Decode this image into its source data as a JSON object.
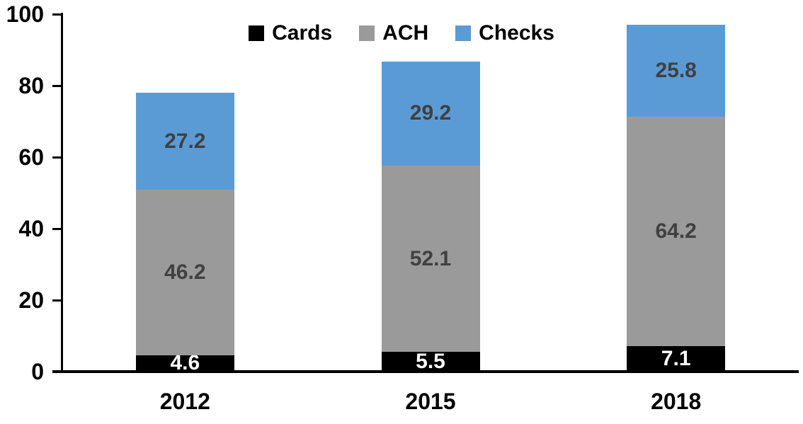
{
  "chart_data": {
    "type": "bar",
    "stacked": true,
    "title": "",
    "xlabel": "",
    "ylabel": "",
    "categories": [
      "2012",
      "2015",
      "2018"
    ],
    "series": [
      {
        "name": "Cards",
        "values": [
          4.6,
          5.5,
          7.1
        ],
        "color": "#000000",
        "label_color": "#ffffff"
      },
      {
        "name": "ACH",
        "values": [
          46.2,
          52.1,
          64.2
        ],
        "color": "#9a9a9a",
        "label_color": "#404040"
      },
      {
        "name": "Checks",
        "values": [
          27.2,
          29.2,
          25.8
        ],
        "color": "#5b9bd5",
        "label_color": "#404040"
      }
    ],
    "ylim": [
      0,
      100
    ],
    "yticks": [
      0,
      20,
      40,
      60,
      80,
      100
    ],
    "grid": false,
    "legend_position": "top-center",
    "axis_color": "#000000",
    "background_color": "#ffffff"
  }
}
